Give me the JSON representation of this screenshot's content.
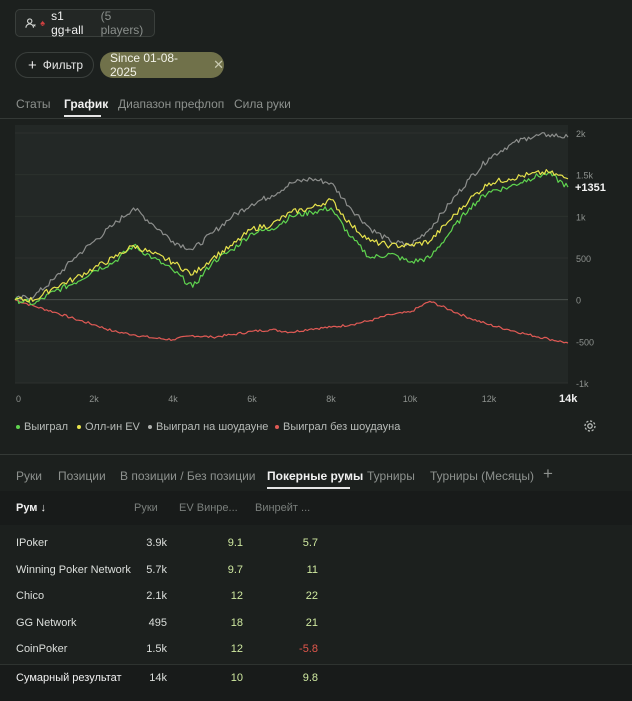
{
  "player": {
    "name": "s1 gg+all",
    "count": "(5 players)"
  },
  "filter": {
    "label": "Фильтр"
  },
  "date_chip": {
    "label": "Since 01-08-2025"
  },
  "tabs": [
    "Статы",
    "График",
    "Диапазон префлоп",
    "Сила руки"
  ],
  "active_tab": "График",
  "chart_data": {
    "type": "line",
    "x_ticks": [
      "0",
      "2k",
      "4k",
      "6k",
      "8k",
      "10k",
      "12k",
      "14k"
    ],
    "y_ticks": [
      "2k",
      "1.5k",
      "1k",
      "500",
      "0",
      "-500",
      "-1k"
    ],
    "xlim": [
      0,
      14000
    ],
    "ylim": [
      -1000,
      2000
    ],
    "end_label": "+1351",
    "series": [
      {
        "name": "Выиграл",
        "color": "#5fd44f",
        "x": [
          0,
          500,
          1000,
          1500,
          2000,
          2500,
          3000,
          3500,
          4000,
          4500,
          5000,
          5500,
          6000,
          6500,
          7000,
          7500,
          8000,
          8500,
          9000,
          9500,
          10000,
          10500,
          11000,
          11500,
          12000,
          12500,
          13000,
          13500,
          14000
        ],
        "y": [
          0,
          -50,
          100,
          200,
          350,
          450,
          650,
          500,
          350,
          150,
          450,
          600,
          800,
          850,
          1000,
          1050,
          1100,
          750,
          500,
          550,
          450,
          500,
          800,
          1100,
          1300,
          1350,
          1450,
          1520,
          1351
        ]
      },
      {
        "name": "Олл-ин EV",
        "color": "#e7e34c",
        "x": [
          0,
          500,
          1000,
          1500,
          2000,
          2500,
          3000,
          3500,
          4000,
          4500,
          5000,
          5500,
          6000,
          6500,
          7000,
          7500,
          8000,
          8500,
          9000,
          9500,
          10000,
          10500,
          11000,
          11500,
          12000,
          12500,
          13000,
          13500,
          14000
        ],
        "y": [
          0,
          0,
          150,
          250,
          380,
          500,
          650,
          550,
          450,
          300,
          500,
          650,
          850,
          900,
          1050,
          1100,
          1200,
          900,
          700,
          650,
          650,
          700,
          950,
          1200,
          1400,
          1450,
          1500,
          1530,
          1450
        ]
      },
      {
        "name": "Выиграл на шоудауне",
        "color": "#8c8e8c",
        "x": [
          0,
          500,
          1000,
          1500,
          2000,
          2500,
          3000,
          3500,
          4000,
          4500,
          5000,
          5500,
          6000,
          6500,
          7000,
          7500,
          8000,
          8500,
          9000,
          9500,
          10000,
          10500,
          11000,
          11500,
          12000,
          12500,
          13000,
          13500,
          14000
        ],
        "y": [
          0,
          50,
          250,
          500,
          700,
          900,
          1100,
          900,
          700,
          600,
          800,
          1000,
          1150,
          1250,
          1400,
          1450,
          1400,
          1100,
          850,
          700,
          650,
          850,
          1150,
          1450,
          1700,
          1850,
          1950,
          1980,
          1950
        ]
      },
      {
        "name": "Выиграл без шоудауна",
        "color": "#e05a55",
        "x": [
          0,
          500,
          1000,
          1500,
          2000,
          2500,
          3000,
          3500,
          4000,
          4500,
          5000,
          5500,
          6000,
          6500,
          7000,
          7500,
          8000,
          8500,
          9000,
          9500,
          10000,
          10500,
          11000,
          11500,
          12000,
          12500,
          13000,
          13500,
          14000
        ],
        "y": [
          0,
          -80,
          -150,
          -230,
          -300,
          -380,
          -420,
          -460,
          -480,
          -430,
          -450,
          -420,
          -380,
          -360,
          -390,
          -350,
          -330,
          -300,
          -250,
          -180,
          -150,
          -20,
          -120,
          -220,
          -300,
          -360,
          -420,
          -470,
          -520
        ]
      }
    ]
  },
  "legend": [
    "Выиграл",
    "Олл-ин EV",
    "Выиграл на шоудауне",
    "Выиграл без шоудауна"
  ],
  "subtabs": [
    "Руки",
    "Позиции",
    "В позиции / Без позиции",
    "Покерные румы",
    "Турниры",
    "Турниры (Месяцы)"
  ],
  "active_subtab": "Покерные румы",
  "table": {
    "headers": [
      "Рум ↓",
      "Руки",
      "EV Винре...",
      "Винрейт ..."
    ],
    "rows": [
      {
        "room": "IPoker",
        "hands": "3.9k",
        "ev": "9.1",
        "wr": "5.7",
        "wr_color": "#cfe9a0"
      },
      {
        "room": "Winning Poker Network",
        "hands": "5.7k",
        "ev": "9.7",
        "wr": "11",
        "wr_color": "#cfe9a0"
      },
      {
        "room": "Chico",
        "hands": "2.1k",
        "ev": "12",
        "wr": "22",
        "wr_color": "#cfe9a0"
      },
      {
        "room": "GG Network",
        "hands": "495",
        "ev": "18",
        "wr": "21",
        "wr_color": "#cfe9a0"
      },
      {
        "room": "CoinPoker",
        "hands": "1.5k",
        "ev": "12",
        "wr": "-5.8",
        "wr_color": "#e2574c"
      }
    ],
    "total": {
      "room": "Сумарный результат",
      "hands": "14k",
      "ev": "10",
      "wr": "9.8"
    }
  }
}
